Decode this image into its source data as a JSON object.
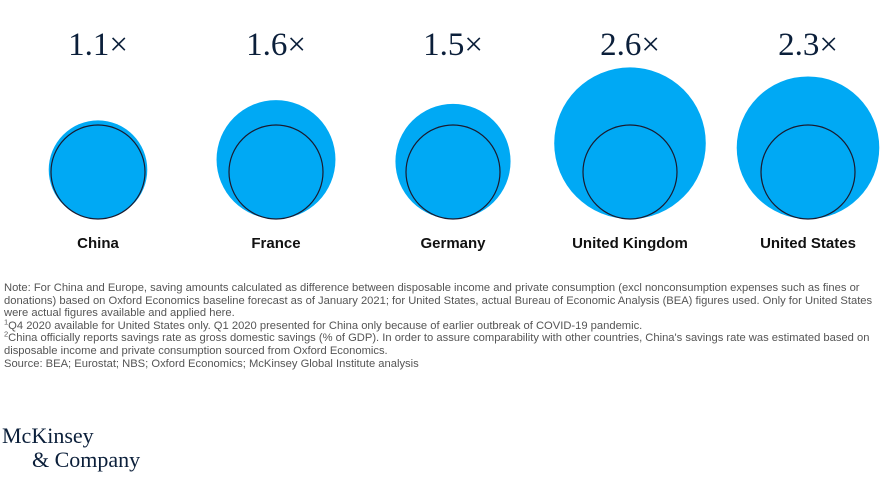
{
  "chart_data": {
    "type": "bubble",
    "title": "",
    "categories": [
      "China",
      "France",
      "Germany",
      "United Kingdom",
      "United States"
    ],
    "values": [
      1.1,
      1.6,
      1.5,
      2.6,
      2.3
    ],
    "value_labels": [
      "1.1×",
      "1.6×",
      "1.5×",
      "2.6×",
      "2.3×"
    ],
    "baseline": 1,
    "colors": {
      "fill": "#00a9f4",
      "outline": "#1a1a2e"
    }
  },
  "notes": {
    "main": "Note: For China and Europe, saving amounts calculated as difference between disposable income and private consumption (excl nonconsumption expenses such as fines or donations) based on Oxford Economics baseline forecast as of January 2021; for United States, actual Bureau of Economic Analysis (BEA) figures used. Only for United States were actual figures available and applied here.",
    "fn1_marker": "1",
    "fn1": "Q4 2020 available for United States only. Q1 2020 presented for China only because of earlier outbreak of COVID-19 pandemic.",
    "fn2_marker": "2",
    "fn2": "China officially reports savings rate as gross domestic savings (% of GDP). In order to assure comparability with other countries, China's savings rate was estimated based on disposable income and private consumption sourced from Oxford Economics.",
    "source": "Source: BEA; Eurostat; NBS; Oxford Economics; McKinsey Global Institute analysis"
  },
  "logo": {
    "line1": "McKinsey",
    "line2": "& Company"
  }
}
